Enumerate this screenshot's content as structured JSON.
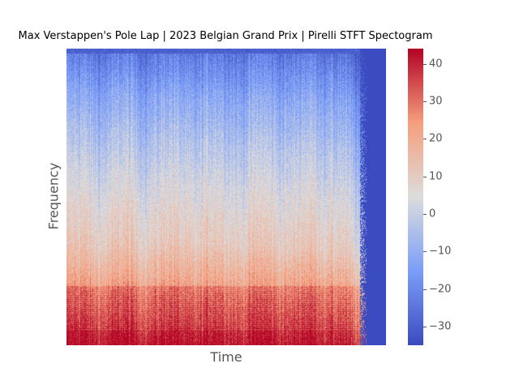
{
  "chart_data": {
    "type": "heatmap",
    "title": "Max Verstappen's Pole Lap | 2023 Belgian Grand Prix | Pirelli STFT Spectogram",
    "xlabel": "Time",
    "ylabel": "Frequency",
    "colormap": "coolwarm",
    "colorbar": {
      "vmin": -35,
      "vmax": 44,
      "ticks": [
        40,
        30,
        20,
        10,
        0,
        -10,
        -20,
        -30
      ],
      "tick_labels": [
        "40",
        "30",
        "20",
        "10",
        "0",
        "−10",
        "−20",
        "−30"
      ]
    },
    "signal_end_fraction": 0.92,
    "level_profile_by_frequency": [
      {
        "band": "lowest",
        "level_db": 35
      },
      {
        "band": "low",
        "level_db": 25
      },
      {
        "band": "low-mid",
        "level_db": 12
      },
      {
        "band": "mid",
        "level_db": 5
      },
      {
        "band": "high-mid",
        "level_db": -3
      },
      {
        "band": "high",
        "level_db": -12
      },
      {
        "band": "highest",
        "level_db": -25
      }
    ],
    "padding_level_db": -35
  }
}
